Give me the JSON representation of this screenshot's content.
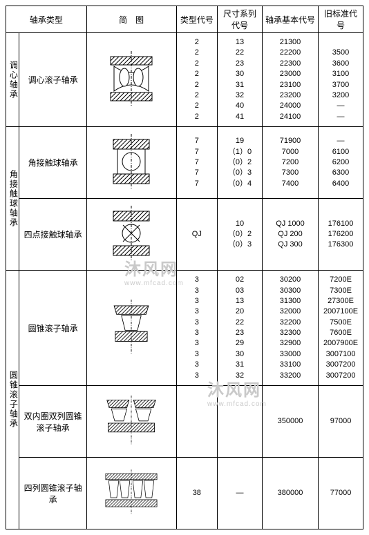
{
  "headers": {
    "type": "轴承类型",
    "diagram": "简　图",
    "c1": "类型代号",
    "c2": "尺寸系列代号",
    "c3": "轴承基本代号",
    "c4": "旧标准代号"
  },
  "groups": [
    {
      "label": "调心轴承",
      "rows": [
        {
          "type_label": "调心滚子轴承",
          "diagram": "spherical_roller",
          "c1": [
            "2",
            "2",
            "2",
            "2",
            "2",
            "2",
            "2",
            "2"
          ],
          "c2": [
            "13",
            "22",
            "23",
            "30",
            "31",
            "32",
            "40",
            "41"
          ],
          "c3": [
            "21300",
            "22200",
            "22300",
            "23000",
            "23100",
            "23200",
            "24000",
            "24100"
          ],
          "c4": [
            "",
            "3500",
            "3600",
            "3100",
            "3700",
            "3200",
            "—",
            "—"
          ]
        }
      ]
    },
    {
      "label": "角接触球轴承",
      "rows": [
        {
          "type_label": "角接触球轴承",
          "diagram": "angular_contact",
          "c1": [
            "7",
            "7",
            "7",
            "7",
            "7"
          ],
          "c2": [
            "19",
            "（1）0",
            "（0）2",
            "（0）3",
            "（0）4"
          ],
          "c3": [
            "71900",
            "7000",
            "7200",
            "7300",
            "7400"
          ],
          "c4": [
            "—",
            "6100",
            "6200",
            "6300",
            "6400"
          ]
        },
        {
          "type_label": "四点接触球轴承",
          "diagram": "four_point",
          "c1": [
            "QJ"
          ],
          "c2": [
            "10",
            "（0）2",
            "（0）3"
          ],
          "c3": [
            "QJ 1000",
            "QJ 200",
            "QJ 300"
          ],
          "c4": [
            "176100",
            "176200",
            "176300"
          ]
        }
      ]
    },
    {
      "label": "圆锥滚子轴承",
      "rows": [
        {
          "type_label": "圆锥滚子轴承",
          "diagram": "tapered_roller",
          "c1": [
            "3",
            "3",
            "3",
            "3",
            "3",
            "3",
            "3",
            "3",
            "3",
            "3"
          ],
          "c2": [
            "02",
            "03",
            "13",
            "20",
            "22",
            "23",
            "29",
            "30",
            "31",
            "32"
          ],
          "c3": [
            "30200",
            "30300",
            "31300",
            "32000",
            "32200",
            "32300",
            "32900",
            "33000",
            "33100",
            "33200"
          ],
          "c4": [
            "7200E",
            "7300E",
            "27300E",
            "2007100E",
            "7500E",
            "7600E",
            "2007900E",
            "3007100",
            "3007200",
            "3007200"
          ]
        },
        {
          "type_label": "双内圈双列圆锥滚子轴承",
          "diagram": "double_inner_tapered",
          "c1": [
            ""
          ],
          "c2": [
            ""
          ],
          "c3": [
            "350000"
          ],
          "c4": [
            "97000"
          ]
        },
        {
          "type_label": "四列圆锥滚子轴承",
          "diagram": "four_row_tapered",
          "c1": [
            "38"
          ],
          "c2": [
            "—"
          ],
          "c3": [
            "380000"
          ],
          "c4": [
            "77000"
          ]
        }
      ]
    }
  ],
  "watermark": {
    "brand": "沐风网",
    "url": "www.mfcad.com"
  },
  "style": {
    "border_color": "#000000",
    "background": "#ffffff",
    "font_family": "SimSun",
    "header_fontsize": 12,
    "cell_fontsize": 11,
    "hatch_stroke": "#000000",
    "watermark_color": "#c9c9c9"
  }
}
